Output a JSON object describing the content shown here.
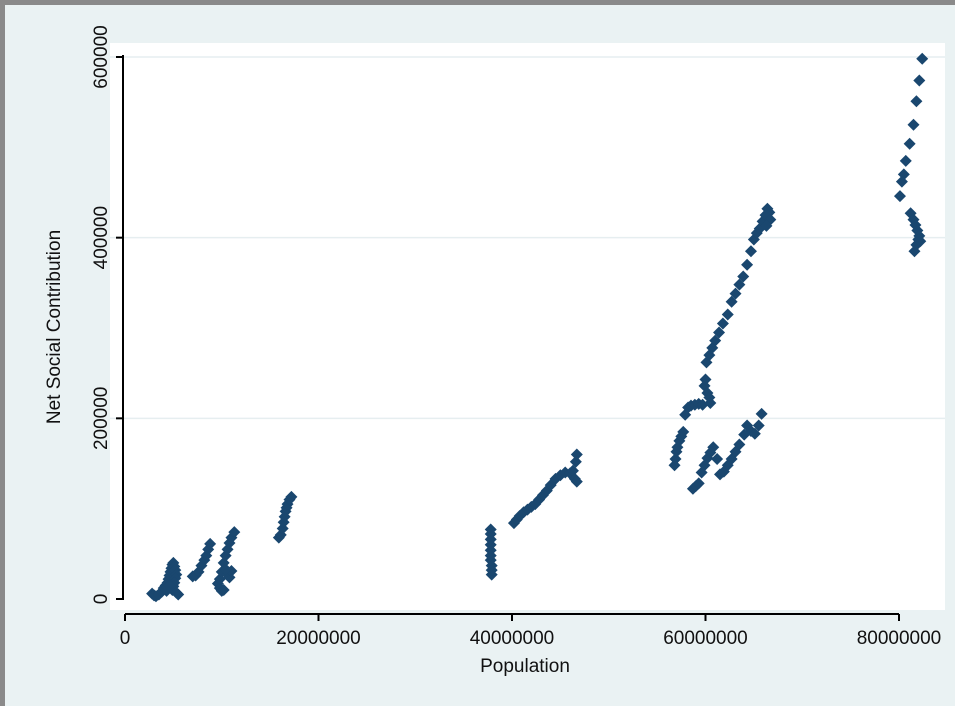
{
  "chart_data": {
    "type": "scatter",
    "title": "",
    "xlabel": "Population",
    "ylabel": "Net Social Contribution",
    "xlim": [
      0,
      84000000
    ],
    "ylim": [
      -10000,
      605000
    ],
    "xticks": [
      0,
      20000000,
      40000000,
      60000000,
      80000000
    ],
    "xtick_labels": [
      "0",
      "20000000",
      "40000000",
      "60000000",
      "80000000"
    ],
    "yticks": [
      0,
      200000,
      400000,
      600000
    ],
    "ytick_labels": [
      "0",
      "200000",
      "400000",
      "600000"
    ],
    "grid": "horizontal",
    "legend": "none",
    "marker": "diamond",
    "colors": {
      "marker": "#1a476f",
      "plot_bg": "#ffffff",
      "outer_bg": "#eaf2f3",
      "grid": "#e6eef0",
      "axis": "#000000"
    },
    "series": [
      {
        "points": [
          [
            2800000,
            6000
          ],
          [
            3000000,
            4000
          ],
          [
            3200000,
            3000
          ],
          [
            3500000,
            5000
          ],
          [
            3800000,
            8000
          ],
          [
            4000000,
            12000
          ],
          [
            4200000,
            15000
          ],
          [
            4400000,
            18000
          ],
          [
            4500000,
            22000
          ],
          [
            4600000,
            26000
          ],
          [
            4700000,
            30000
          ],
          [
            4800000,
            34000
          ],
          [
            4900000,
            38000
          ],
          [
            5000000,
            40000
          ],
          [
            5100000,
            36000
          ],
          [
            5200000,
            32000
          ],
          [
            5300000,
            27000
          ],
          [
            5200000,
            23000
          ],
          [
            5100000,
            18000
          ],
          [
            5000000,
            14000
          ],
          [
            4900000,
            10000
          ],
          [
            5300000,
            7000
          ],
          [
            5500000,
            5000
          ],
          [
            4600000,
            15000
          ],
          [
            4300000,
            9000
          ],
          [
            7000000,
            25000
          ],
          [
            7300000,
            26000
          ],
          [
            7600000,
            30000
          ],
          [
            7900000,
            37000
          ],
          [
            8200000,
            43000
          ],
          [
            8400000,
            48000
          ],
          [
            8600000,
            55000
          ],
          [
            8800000,
            61000
          ],
          [
            9600000,
            17000
          ],
          [
            9800000,
            12000
          ],
          [
            10000000,
            9000
          ],
          [
            10200000,
            10000
          ],
          [
            9800000,
            22000
          ],
          [
            10000000,
            30000
          ],
          [
            10200000,
            40000
          ],
          [
            10400000,
            48000
          ],
          [
            10600000,
            55000
          ],
          [
            10800000,
            62000
          ],
          [
            11000000,
            68000
          ],
          [
            11300000,
            74000
          ],
          [
            10600000,
            27000
          ],
          [
            10800000,
            24000
          ],
          [
            11000000,
            31000
          ],
          [
            10400000,
            33000
          ],
          [
            15900000,
            68000
          ],
          [
            16100000,
            71000
          ],
          [
            16300000,
            78000
          ],
          [
            16400000,
            85000
          ],
          [
            16500000,
            91000
          ],
          [
            16600000,
            97000
          ],
          [
            16700000,
            101000
          ],
          [
            16800000,
            105000
          ],
          [
            17000000,
            110000
          ],
          [
            17200000,
            113000
          ],
          [
            37900000,
            27000
          ],
          [
            37900000,
            32000
          ],
          [
            37900000,
            37000
          ],
          [
            37800000,
            43000
          ],
          [
            37800000,
            48000
          ],
          [
            37800000,
            54000
          ],
          [
            37800000,
            60000
          ],
          [
            37800000,
            66000
          ],
          [
            37800000,
            72000
          ],
          [
            37800000,
            77000
          ],
          [
            40200000,
            84000
          ],
          [
            40500000,
            88000
          ],
          [
            40800000,
            92000
          ],
          [
            41200000,
            96000
          ],
          [
            41600000,
            99000
          ],
          [
            42000000,
            102000
          ],
          [
            42400000,
            105000
          ],
          [
            42800000,
            110000
          ],
          [
            43200000,
            115000
          ],
          [
            43600000,
            120000
          ],
          [
            44000000,
            126000
          ],
          [
            44500000,
            133000
          ],
          [
            45000000,
            137000
          ],
          [
            45500000,
            140000
          ],
          [
            46000000,
            139000
          ],
          [
            46300000,
            142000
          ],
          [
            46500000,
            133000
          ],
          [
            46700000,
            130000
          ],
          [
            46600000,
            152000
          ],
          [
            46700000,
            160000
          ],
          [
            56800000,
            148000
          ],
          [
            56900000,
            155000
          ],
          [
            57000000,
            163000
          ],
          [
            57100000,
            168000
          ],
          [
            57300000,
            175000
          ],
          [
            57500000,
            180000
          ],
          [
            57700000,
            185000
          ],
          [
            57900000,
            204000
          ],
          [
            58200000,
            212000
          ],
          [
            58500000,
            214000
          ],
          [
            58900000,
            215000
          ],
          [
            59300000,
            216000
          ],
          [
            59700000,
            215000
          ],
          [
            58700000,
            122000
          ],
          [
            59000000,
            125000
          ],
          [
            59300000,
            128000
          ],
          [
            59600000,
            140000
          ],
          [
            59900000,
            148000
          ],
          [
            60200000,
            156000
          ],
          [
            60500000,
            162000
          ],
          [
            60800000,
            168000
          ],
          [
            61200000,
            155000
          ],
          [
            61500000,
            138000
          ],
          [
            61900000,
            141000
          ],
          [
            62300000,
            148000
          ],
          [
            62700000,
            155000
          ],
          [
            63100000,
            163000
          ],
          [
            63500000,
            171000
          ],
          [
            64000000,
            182000
          ],
          [
            64300000,
            192000
          ],
          [
            64700000,
            186000
          ],
          [
            65100000,
            183000
          ],
          [
            65500000,
            192000
          ],
          [
            65800000,
            205000
          ],
          [
            59900000,
            236000
          ],
          [
            60000000,
            243000
          ],
          [
            60200000,
            228000
          ],
          [
            60400000,
            223000
          ],
          [
            60500000,
            217000
          ],
          [
            60100000,
            262000
          ],
          [
            60400000,
            270000
          ],
          [
            60700000,
            278000
          ],
          [
            61000000,
            286000
          ],
          [
            61400000,
            295000
          ],
          [
            61800000,
            305000
          ],
          [
            62300000,
            315000
          ],
          [
            62700000,
            329000
          ],
          [
            63100000,
            338000
          ],
          [
            63500000,
            348000
          ],
          [
            63900000,
            357000
          ],
          [
            64300000,
            370000
          ],
          [
            64700000,
            385000
          ],
          [
            65000000,
            398000
          ],
          [
            65300000,
            405000
          ],
          [
            65600000,
            410000
          ],
          [
            65900000,
            418000
          ],
          [
            66200000,
            425000
          ],
          [
            66400000,
            432000
          ],
          [
            66600000,
            428000
          ],
          [
            66700000,
            420000
          ],
          [
            66300000,
            413000
          ],
          [
            80100000,
            446000
          ],
          [
            80300000,
            462000
          ],
          [
            80500000,
            470000
          ],
          [
            80700000,
            485000
          ],
          [
            81100000,
            504000
          ],
          [
            81500000,
            525000
          ],
          [
            81800000,
            551000
          ],
          [
            82100000,
            574000
          ],
          [
            82400000,
            598000
          ],
          [
            81200000,
            427000
          ],
          [
            81500000,
            420000
          ],
          [
            81700000,
            414000
          ],
          [
            81900000,
            408000
          ],
          [
            82100000,
            402000
          ],
          [
            82200000,
            396000
          ],
          [
            81800000,
            392000
          ],
          [
            81600000,
            385000
          ],
          [
            82000000,
            398000
          ]
        ]
      }
    ]
  }
}
